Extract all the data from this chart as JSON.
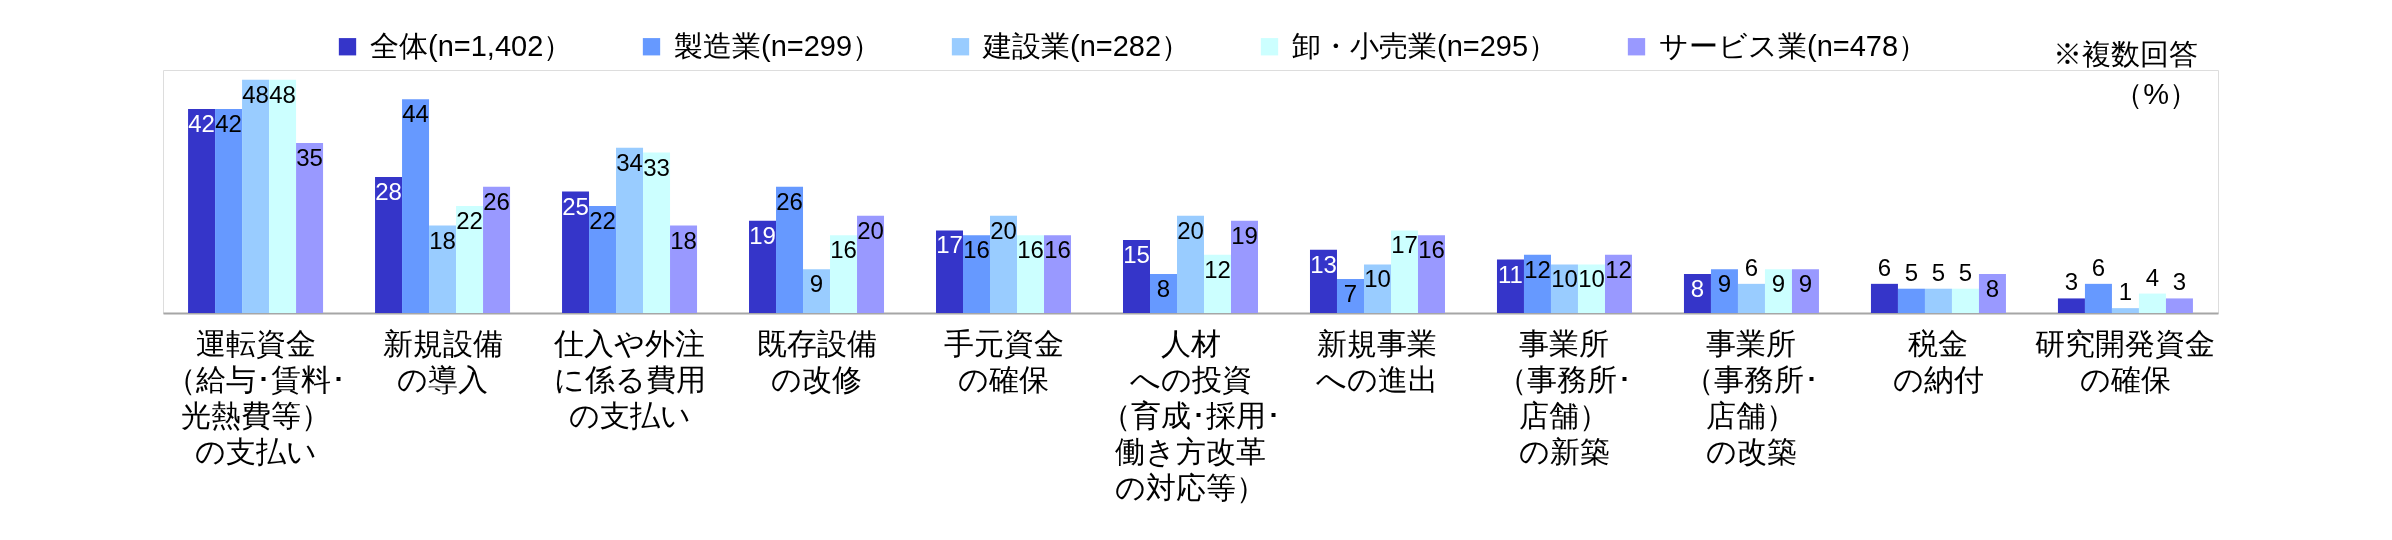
{
  "chart_data": {
    "type": "bar",
    "categories": [
      "運転資金（給与･賃料･光熱費等）の支払い",
      "新規設備の導入",
      "仕入や外注に係る費用の支払い",
      "既存設備の改修",
      "手元資金の確保",
      "人材への投資（育成･採用･働き方改革の対応等）",
      "新規事業への進出",
      "事業所（事務所･店舗）の新築",
      "事業所（事務所･店舗）の改築",
      "税金の納付",
      "研究開発資金の確保"
    ],
    "series": [
      {
        "name": "全体(n=1,402）",
        "color": "#3535c9",
        "values": [
          42,
          28,
          25,
          19,
          17,
          15,
          13,
          11,
          8,
          6,
          3
        ]
      },
      {
        "name": "製造業(n=299）",
        "color": "#6699ff",
        "values": [
          42,
          44,
          22,
          26,
          16,
          8,
          7,
          12,
          9,
          5,
          6
        ]
      },
      {
        "name": "建設業(n=282）",
        "color": "#99ccff",
        "values": [
          48,
          18,
          34,
          9,
          20,
          20,
          10,
          10,
          6,
          5,
          1
        ]
      },
      {
        "name": "卸・小売業(n=295）",
        "color": "#ccffff",
        "values": [
          48,
          22,
          33,
          16,
          16,
          12,
          17,
          10,
          9,
          5,
          4
        ]
      },
      {
        "name": "サービス業(n=478）",
        "color": "#9999ff",
        "values": [
          35,
          26,
          18,
          20,
          16,
          19,
          16,
          12,
          9,
          8,
          3
        ]
      }
    ],
    "ylim": [
      0,
      50
    ],
    "tick_labels": "x",
    "grid": false,
    "legend": "top",
    "data_labels": true,
    "annotations": [
      "※複数回答",
      "（%）"
    ]
  }
}
